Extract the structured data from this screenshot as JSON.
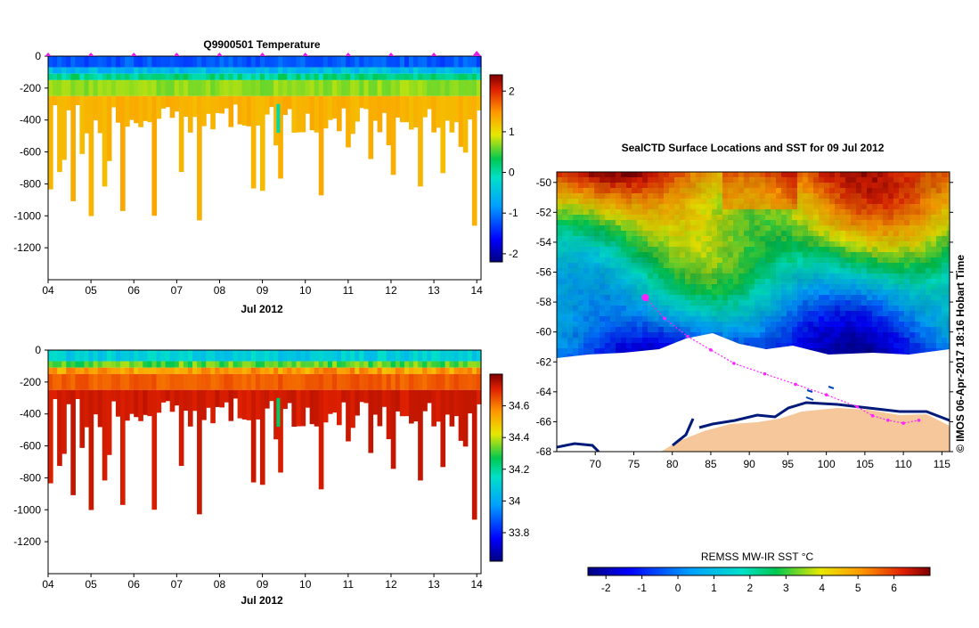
{
  "colors": {
    "profile_marker": "#e020e0",
    "track": "#ff22ff",
    "land": "#f6c79a",
    "coast": "#001a7a",
    "axis": "#000000"
  },
  "chart_data": [
    {
      "type": "heatmap",
      "title": "Q9900501  Temperature",
      "xlabel": "Jul 2012",
      "ylabel": "",
      "x_ticks": [
        "04",
        "05",
        "06",
        "07",
        "08",
        "09",
        "10",
        "11",
        "12",
        "13",
        "14"
      ],
      "x_range_days": [
        4.0,
        14.1
      ],
      "ylim": [
        -1400,
        0
      ],
      "y_ticks": [
        0,
        -200,
        -400,
        -600,
        -800,
        -1000,
        -1200
      ],
      "colorbar": {
        "min": -2.2,
        "max": 2.4,
        "ticks": [
          2,
          1,
          0,
          -1,
          -2
        ]
      },
      "surface_value": -1.2,
      "mid_value": 0.1,
      "deep_value": 1.3,
      "anomaly": {
        "day": 9.37,
        "depth_range": [
          -300,
          -480
        ],
        "value": 0.0
      },
      "profile_markers_days": [
        4.0,
        5.0,
        6.0,
        7.0,
        8.0,
        9.0,
        10.0,
        11.0,
        12.0,
        13.0,
        14.0
      ]
    },
    {
      "type": "heatmap",
      "title": "",
      "xlabel": "Jul 2012",
      "ylabel": "",
      "x_ticks": [
        "04",
        "05",
        "06",
        "07",
        "08",
        "09",
        "10",
        "11",
        "12",
        "13",
        "14"
      ],
      "x_range_days": [
        4.0,
        14.1
      ],
      "ylim": [
        -1400,
        0
      ],
      "y_ticks": [
        0,
        -200,
        -400,
        -600,
        -800,
        -1000,
        -1200
      ],
      "colorbar": {
        "min": 33.62,
        "max": 34.8,
        "ticks": [
          34.6,
          34.4,
          34.2,
          34,
          33.8
        ]
      },
      "surface_value": 34.1,
      "mid_value": 34.55,
      "deep_value": 34.72,
      "anomaly": {
        "day": 9.37,
        "depth_range": [
          -300,
          -480
        ],
        "value": 34.25
      }
    },
    {
      "type": "heatmap",
      "title": "SealCTD Surface Locations and SST for 09 Jul 2012",
      "xlabel": "",
      "ylabel": "",
      "lon_range": [
        65,
        116
      ],
      "lat_range": [
        -68,
        -49.3
      ],
      "x_ticks": [
        70,
        75,
        80,
        85,
        90,
        95,
        100,
        105,
        110,
        115
      ],
      "y_ticks": [
        -50,
        -52,
        -54,
        -56,
        -58,
        -60,
        -62,
        -64,
        -66,
        -68
      ],
      "sst_range_c": [
        -2.5,
        7.0
      ],
      "colorbar_label": "REMSS MW-IR SST °C",
      "colorbar_ticks": [
        -2,
        -1,
        0,
        1,
        2,
        3,
        4,
        5,
        6
      ],
      "current_location": {
        "lon": 76.5,
        "lat": -57.7
      },
      "track": [
        {
          "lon": 76.5,
          "lat": -57.7
        },
        {
          "lon": 79,
          "lat": -59.1
        },
        {
          "lon": 82,
          "lat": -60.3
        },
        {
          "lon": 85,
          "lat": -61.2
        },
        {
          "lon": 88,
          "lat": -62.1
        },
        {
          "lon": 92,
          "lat": -62.8
        },
        {
          "lon": 96,
          "lat": -63.5
        },
        {
          "lon": 100,
          "lat": -64.2
        },
        {
          "lon": 104,
          "lat": -65.0
        },
        {
          "lon": 106,
          "lat": -65.6
        },
        {
          "lon": 108,
          "lat": -65.9
        },
        {
          "lon": 110,
          "lat": -66.1
        },
        {
          "lon": 112,
          "lat": -65.9
        }
      ]
    }
  ],
  "footer": {
    "credit": "© IMOS 06-Apr-2017 18:16 Hobart Time"
  }
}
